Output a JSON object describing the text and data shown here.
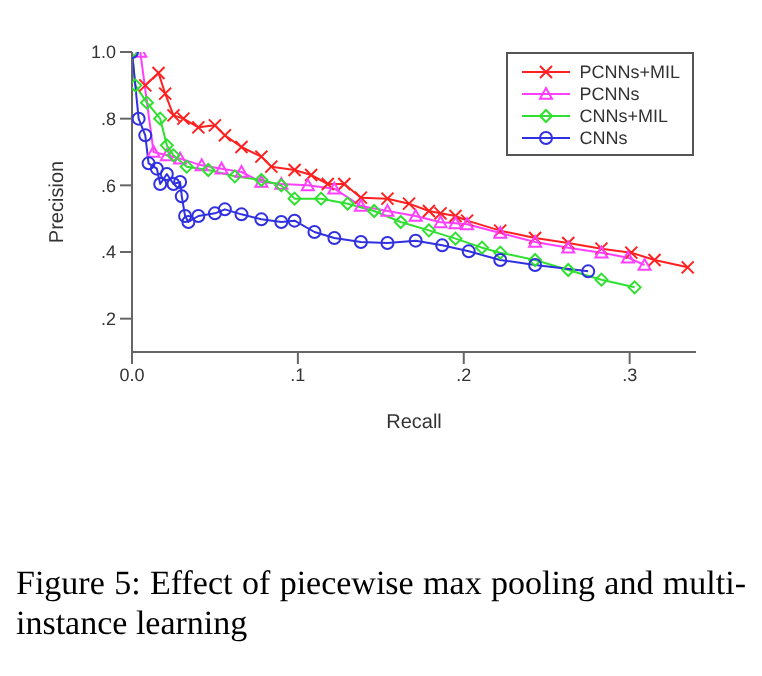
{
  "chart_data": {
    "type": "line",
    "xlabel": "Recall",
    "ylabel": "Precision",
    "annotations": [
      "Figure 5:  Effect of piecewise max pooling and multi-instance learning"
    ],
    "xlim": [
      0,
      0.34
    ],
    "ylim": [
      0.1,
      1.0
    ],
    "xticks": [
      {
        "value": 0,
        "label": "0.0"
      },
      {
        "value": 0.1,
        "label": ".1"
      },
      {
        "value": 0.2,
        "label": ".2"
      },
      {
        "value": 0.3,
        "label": ".3"
      }
    ],
    "yticks": [
      {
        "value": 0.2,
        "label": ".2"
      },
      {
        "value": 0.4,
        "label": ".4"
      },
      {
        "value": 0.6,
        "label": ".6"
      },
      {
        "value": 0.8,
        "label": ".8"
      },
      {
        "value": 1.0,
        "label": "1.0"
      }
    ],
    "legend": "top right",
    "line_style": "solid",
    "series": [
      {
        "name": "PCNNs+MIL",
        "color": "#ff2020",
        "marker": "cross",
        "x": [
          0.008,
          0.016,
          0.02,
          0.025,
          0.031,
          0.04,
          0.05,
          0.056,
          0.066,
          0.078,
          0.084,
          0.098,
          0.108,
          0.118,
          0.128,
          0.138,
          0.154,
          0.167,
          0.179,
          0.186,
          0.195,
          0.202,
          0.222,
          0.243,
          0.263,
          0.283,
          0.301,
          0.315,
          0.335
        ],
        "values": [
          0.9,
          0.937,
          0.875,
          0.81,
          0.8,
          0.774,
          0.78,
          0.75,
          0.715,
          0.686,
          0.656,
          0.646,
          0.631,
          0.604,
          0.604,
          0.563,
          0.56,
          0.545,
          0.523,
          0.516,
          0.508,
          0.494,
          0.464,
          0.442,
          0.427,
          0.41,
          0.398,
          0.376,
          0.354
        ]
      },
      {
        "name": "PCNNs",
        "color": "#ff40ff",
        "marker": "triangle",
        "x": [
          0.005,
          0.013,
          0.021,
          0.029,
          0.042,
          0.054,
          0.066,
          0.078,
          0.09,
          0.106,
          0.122,
          0.138,
          0.154,
          0.171,
          0.186,
          0.195,
          0.202,
          0.222,
          0.243,
          0.263,
          0.283,
          0.299,
          0.309
        ],
        "values": [
          1.0,
          0.7,
          0.69,
          0.68,
          0.66,
          0.65,
          0.64,
          0.61,
          0.604,
          0.6,
          0.59,
          0.538,
          0.523,
          0.508,
          0.489,
          0.486,
          0.483,
          0.457,
          0.43,
          0.413,
          0.398,
          0.383,
          0.361
        ]
      },
      {
        "name": "CNNs+MIL",
        "color": "#30e030",
        "marker": "diamond",
        "x": [
          0,
          0.002,
          0.009,
          0.017,
          0.021,
          0.025,
          0.033,
          0.046,
          0.062,
          0.078,
          0.09,
          0.098,
          0.114,
          0.13,
          0.146,
          0.162,
          0.179,
          0.195,
          0.211,
          0.222,
          0.243,
          0.263,
          0.283,
          0.303
        ],
        "values": [
          1.0,
          0.9,
          0.848,
          0.8,
          0.72,
          0.69,
          0.656,
          0.646,
          0.627,
          0.616,
          0.6,
          0.56,
          0.56,
          0.545,
          0.523,
          0.49,
          0.465,
          0.44,
          0.413,
          0.398,
          0.376,
          0.346,
          0.317,
          0.294
        ]
      },
      {
        "name": "CNNs",
        "color": "#3030e0",
        "marker": "circle",
        "x": [
          0,
          0.004,
          0.008,
          0.01,
          0.015,
          0.017,
          0.021,
          0.025,
          0.029,
          0.03,
          0.032,
          0.034,
          0.04,
          0.05,
          0.056,
          0.066,
          0.078,
          0.09,
          0.098,
          0.11,
          0.122,
          0.138,
          0.154,
          0.171,
          0.187,
          0.203,
          0.222,
          0.243,
          0.275
        ],
        "values": [
          1.0,
          0.8,
          0.75,
          0.666,
          0.65,
          0.604,
          0.634,
          0.604,
          0.61,
          0.567,
          0.508,
          0.49,
          0.508,
          0.516,
          0.528,
          0.513,
          0.498,
          0.49,
          0.494,
          0.46,
          0.442,
          0.43,
          0.427,
          0.434,
          0.42,
          0.402,
          0.376,
          0.361,
          0.342
        ]
      }
    ]
  }
}
